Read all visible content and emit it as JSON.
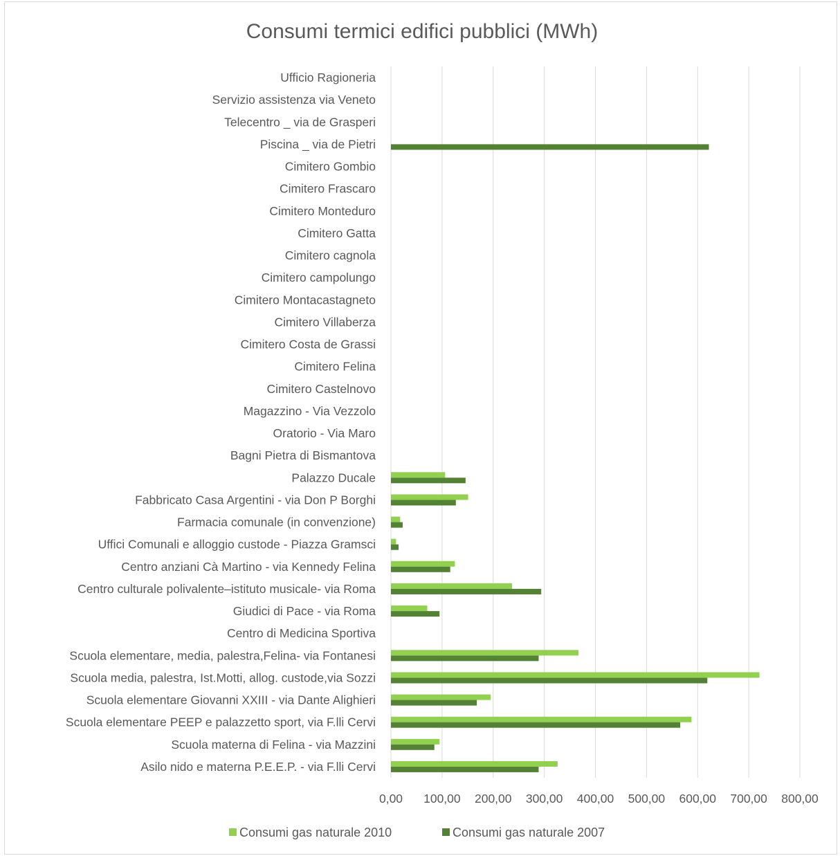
{
  "chart_data": {
    "type": "bar",
    "orientation": "horizontal",
    "title": "Consumi termici edifici pubblici (MWh)",
    "xlabel": "",
    "ylabel": "",
    "xlim": [
      0,
      800
    ],
    "ticks": [
      "0,00",
      "100,00",
      "200,00",
      "300,00",
      "400,00",
      "500,00",
      "600,00",
      "700,00",
      "800,00"
    ],
    "grid": true,
    "legend_position": "bottom",
    "categories": [
      "Asilo nido e materna P.E.E.P. - via F.lli Cervi",
      "Scuola materna di  Felina - via Mazzini",
      "Scuola elementare PEEP e palazzetto sport, via F.lli Cervi",
      "Scuola elementare  Giovanni XXIII - via Dante Alighieri",
      "Scuola media, palestra, Ist.Motti, allog. custode,via Sozzi",
      "Scuola elementare, media, palestra,Felina- via Fontanesi",
      "Centro di Medicina Sportiva",
      "Giudici di Pace - via Roma",
      "Centro culturale polivalente–istituto musicale- via Roma",
      "Centro anziani  Cà Martino - via Kennedy Felina",
      "Uffici Comunali e alloggio custode - Piazza Gramsci",
      "Farmacia comunale (in convenzione)",
      "Fabbricato Casa Argentini - via Don P Borghi",
      "Palazzo Ducale",
      "Bagni Pietra di Bismantova",
      "Oratorio - Via Maro",
      "Magazzino - Via Vezzolo",
      "Cimitero Castelnovo",
      "Cimitero Felina",
      "Cimitero Costa de Grassi",
      "Cimitero Villaberza",
      "Cimitero Montacastagneto",
      "Cimitero campolungo",
      "Cimitero cagnola",
      "Cimitero Gatta",
      "Cimitero Monteduro",
      "Cimitero Frascaro",
      "Cimitero Gombio",
      "Piscina _ via de Pietri",
      "Telecentro _ via de Grasperi",
      "Servizio assistenza via Veneto",
      "Ufficio Ragioneria"
    ],
    "series": [
      {
        "name": "Consumi gas naturale 2010",
        "color": "#92d050",
        "values": [
          326,
          95,
          588,
          195,
          721,
          367,
          0,
          71,
          237,
          125,
          10,
          18,
          151,
          106,
          0,
          0,
          0,
          0,
          0,
          0,
          0,
          0,
          0,
          0,
          0,
          0,
          0,
          0,
          0,
          0,
          0,
          0
        ]
      },
      {
        "name": "Consumi gas naturale 2007",
        "color": "#548235",
        "values": [
          289,
          85,
          566,
          168,
          619,
          289,
          0,
          95,
          294,
          116,
          15,
          23,
          127,
          146,
          0,
          0,
          0,
          0,
          0,
          0,
          0,
          0,
          0,
          0,
          0,
          0,
          0,
          0,
          622,
          0,
          0,
          0
        ]
      }
    ]
  }
}
